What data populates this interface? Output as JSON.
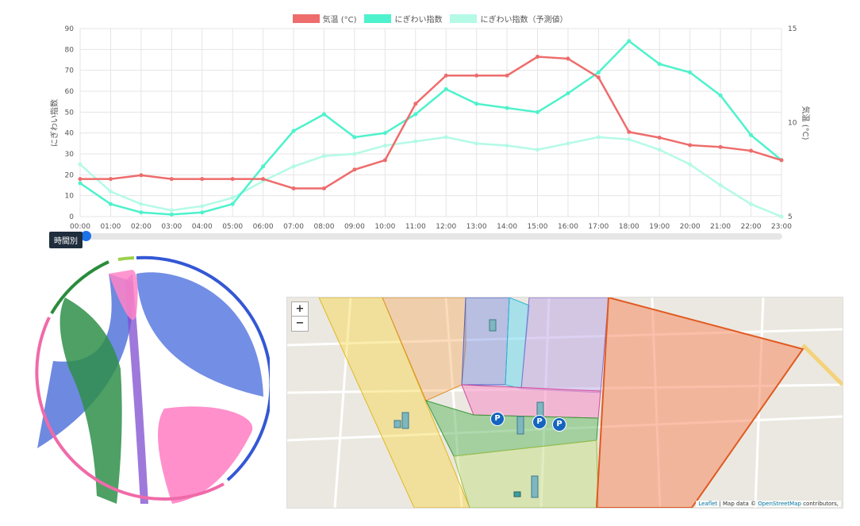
{
  "chart_data": [
    {
      "type": "line",
      "x": [
        "00:00",
        "01:00",
        "02:00",
        "03:00",
        "04:00",
        "05:00",
        "06:00",
        "07:00",
        "08:00",
        "09:00",
        "10:00",
        "11:00",
        "12:00",
        "13:00",
        "14:00",
        "15:00",
        "16:00",
        "17:00",
        "18:00",
        "19:00",
        "20:00",
        "21:00",
        "22:00",
        "23:00"
      ],
      "series": [
        {
          "name": "気温 (°C)",
          "axis": "right",
          "color": "#ee6c6c",
          "values": [
            7.0,
            7.0,
            7.2,
            7.0,
            7.0,
            7.0,
            7.0,
            6.5,
            6.5,
            7.5,
            8.0,
            11.0,
            12.5,
            12.5,
            12.5,
            13.5,
            13.4,
            12.4,
            9.5,
            9.2,
            8.8,
            8.7,
            8.5,
            8.0
          ]
        },
        {
          "name": "にぎわい指数",
          "axis": "left",
          "color": "#4ef2cc",
          "values": [
            16,
            6,
            2,
            1,
            2,
            6,
            24,
            41,
            49,
            38,
            40,
            49,
            61,
            54,
            52,
            50,
            59,
            69,
            84,
            73,
            69,
            58,
            39,
            27
          ]
        },
        {
          "name": "にぎわい指数（予測値）",
          "axis": "left",
          "color": "#b4fae6",
          "values": [
            25,
            12,
            6,
            3,
            5,
            9,
            17,
            24,
            29,
            30,
            34,
            36,
            38,
            35,
            34,
            32,
            35,
            38,
            37,
            32,
            25,
            15,
            6,
            0
          ]
        }
      ],
      "ylabel": "にぎわい指数",
      "y2label": "気温 (°C)",
      "ylim": [
        0,
        90
      ],
      "y2lim": [
        5,
        15
      ],
      "yticks": [
        "0",
        "10",
        "20",
        "30",
        "40",
        "50",
        "60",
        "70",
        "80",
        "90"
      ],
      "y2ticks": [
        "5",
        "10",
        "15"
      ],
      "grid": true,
      "legend": "top"
    }
  ],
  "slider": {
    "label": "時間別",
    "value": 0
  },
  "map": {
    "zoom_in": "+",
    "zoom_out": "−",
    "parking_symbol": "P",
    "attribution_link": "Leaflet",
    "attribution_text": " | Map data © ",
    "attribution_osm": "OpenStreetMap",
    "attribution_suffix": " contributors,"
  }
}
